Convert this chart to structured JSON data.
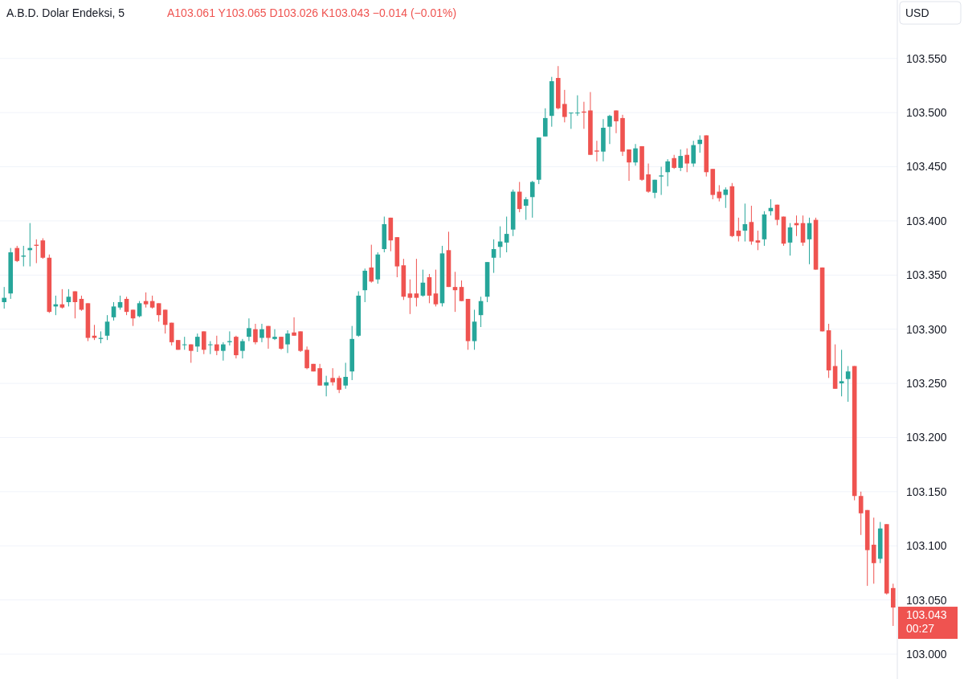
{
  "chart_data": {
    "type": "candlestick",
    "title": "A.B.D. Dolar Endeksi, 5",
    "subtitle": "A103.061 Y103.065 D103.026 K103.043 −0.014 (−0.01%)",
    "ylabel": "USD",
    "categories": [
      null,
      null,
      null,
      null,
      null,
      null,
      null,
      null,
      null,
      null,
      null,
      null,
      null,
      null,
      null,
      null,
      null,
      null,
      null,
      null,
      null,
      null,
      null,
      null,
      null,
      null,
      null,
      null,
      null,
      null,
      null,
      null,
      null,
      null,
      null,
      null,
      null,
      null,
      null,
      null,
      null,
      null,
      null,
      null,
      null,
      null,
      null,
      null,
      null,
      null,
      null,
      null,
      null,
      null,
      null,
      null,
      null,
      null,
      null,
      null,
      null,
      null,
      null,
      null,
      null,
      null,
      null,
      null,
      null,
      null,
      null,
      null,
      null,
      null,
      null,
      null,
      null,
      null,
      null,
      null,
      null,
      null,
      null,
      null,
      null,
      null,
      null,
      null,
      null,
      null,
      null,
      null,
      null,
      null,
      null,
      null,
      null,
      null,
      null,
      null,
      null,
      null,
      null,
      null,
      null,
      null,
      null,
      null,
      null,
      null,
      null,
      null,
      null,
      null,
      null,
      null,
      null,
      null,
      null,
      null,
      null,
      null,
      null,
      null,
      null,
      null,
      null,
      null,
      null,
      null,
      null,
      null,
      null,
      null,
      null,
      null,
      null,
      null,
      null
    ],
    "ohlc": [
      [
        103.325,
        103.339,
        103.319,
        103.329
      ],
      [
        103.333,
        103.375,
        103.328,
        103.371
      ],
      [
        103.375,
        103.377,
        103.362,
        103.363
      ],
      [
        103.367,
        103.377,
        103.358,
        103.368
      ],
      [
        103.373,
        103.398,
        103.358,
        103.375
      ],
      [
        103.378,
        103.383,
        103.361,
        103.377
      ],
      [
        103.382,
        103.384,
        103.365,
        103.366
      ],
      [
        103.366,
        103.369,
        103.315,
        103.316
      ],
      [
        103.321,
        103.331,
        103.313,
        103.323
      ],
      [
        103.323,
        103.337,
        103.319,
        103.32
      ],
      [
        103.325,
        103.337,
        103.321,
        103.33
      ],
      [
        103.335,
        103.335,
        103.31,
        103.325
      ],
      [
        103.328,
        103.331,
        103.317,
        103.318
      ],
      [
        103.324,
        103.324,
        103.289,
        103.292
      ],
      [
        103.294,
        103.304,
        103.29,
        103.292
      ],
      [
        103.291,
        103.298,
        103.287,
        103.292
      ],
      [
        103.294,
        103.313,
        103.29,
        103.307
      ],
      [
        103.311,
        103.325,
        103.308,
        103.321
      ],
      [
        103.32,
        103.331,
        103.318,
        103.325
      ],
      [
        103.328,
        103.33,
        103.313,
        103.316
      ],
      [
        103.318,
        103.318,
        103.303,
        103.31
      ],
      [
        103.312,
        103.326,
        103.311,
        103.324
      ],
      [
        103.326,
        103.334,
        103.32,
        103.323
      ],
      [
        103.326,
        103.331,
        103.319,
        103.32
      ],
      [
        103.324,
        103.324,
        103.307,
        103.313
      ],
      [
        103.318,
        103.318,
        103.296,
        103.304
      ],
      [
        103.306,
        103.306,
        103.285,
        103.288
      ],
      [
        103.29,
        103.29,
        103.281,
        103.281
      ],
      [
        103.286,
        103.293,
        103.281,
        103.286
      ],
      [
        103.286,
        103.286,
        103.269,
        103.28
      ],
      [
        103.284,
        103.296,
        103.279,
        103.293
      ],
      [
        103.298,
        103.298,
        103.277,
        103.281
      ],
      [
        103.286,
        103.289,
        103.277,
        103.286
      ],
      [
        103.286,
        103.294,
        103.276,
        103.28
      ],
      [
        103.28,
        103.288,
        103.271,
        103.286
      ],
      [
        103.288,
        103.298,
        103.285,
        103.289
      ],
      [
        103.293,
        103.294,
        103.273,
        103.276
      ],
      [
        103.28,
        103.291,
        103.273,
        103.289
      ],
      [
        103.293,
        103.31,
        103.289,
        103.301
      ],
      [
        103.3,
        103.305,
        103.286,
        103.288
      ],
      [
        103.292,
        103.305,
        103.288,
        103.3
      ],
      [
        103.303,
        103.303,
        103.282,
        103.292
      ],
      [
        103.291,
        103.3,
        103.29,
        103.293
      ],
      [
        103.293,
        103.293,
        103.281,
        103.282
      ],
      [
        103.286,
        103.299,
        103.278,
        103.296
      ],
      [
        103.297,
        103.311,
        103.294,
        103.294
      ],
      [
        103.298,
        103.298,
        103.279,
        103.28
      ],
      [
        103.281,
        103.284,
        103.263,
        103.264
      ],
      [
        103.268,
        103.268,
        103.261,
        103.261
      ],
      [
        103.264,
        103.268,
        103.248,
        103.248
      ],
      [
        103.248,
        103.257,
        103.238,
        103.251
      ],
      [
        103.255,
        103.264,
        103.248,
        103.251
      ],
      [
        103.255,
        103.257,
        103.241,
        103.244
      ],
      [
        103.248,
        103.269,
        103.245,
        103.256
      ],
      [
        103.261,
        103.303,
        103.253,
        103.291
      ],
      [
        103.294,
        103.335,
        103.293,
        103.331
      ],
      [
        103.336,
        103.356,
        103.325,
        103.354
      ],
      [
        103.357,
        103.378,
        103.343,
        103.344
      ],
      [
        103.346,
        103.371,
        103.342,
        103.369
      ],
      [
        103.374,
        103.404,
        103.371,
        103.397
      ],
      [
        103.403,
        103.403,
        103.372,
        103.382
      ],
      [
        103.385,
        103.385,
        103.348,
        103.358
      ],
      [
        103.359,
        103.365,
        103.327,
        103.33
      ],
      [
        103.333,
        103.346,
        103.314,
        103.329
      ],
      [
        103.333,
        103.365,
        103.321,
        103.329
      ],
      [
        103.331,
        103.355,
        103.33,
        103.343
      ],
      [
        103.348,
        103.351,
        103.324,
        103.331
      ],
      [
        103.333,
        103.355,
        103.321,
        103.323
      ],
      [
        103.324,
        103.377,
        103.321,
        103.37
      ],
      [
        103.373,
        103.39,
        103.339,
        103.339
      ],
      [
        103.339,
        103.353,
        103.316,
        103.336
      ],
      [
        103.339,
        103.345,
        103.326,
        103.326
      ],
      [
        103.328,
        103.328,
        103.281,
        103.289
      ],
      [
        103.289,
        103.318,
        103.281,
        103.307
      ],
      [
        103.313,
        103.33,
        103.302,
        103.326
      ],
      [
        103.33,
        103.362,
        103.325,
        103.362
      ],
      [
        103.366,
        103.383,
        103.352,
        103.374
      ],
      [
        103.376,
        103.395,
        103.366,
        103.381
      ],
      [
        103.38,
        103.404,
        103.371,
        103.388
      ],
      [
        103.392,
        103.429,
        103.386,
        103.427
      ],
      [
        103.427,
        103.436,
        103.408,
        103.411
      ],
      [
        103.414,
        103.422,
        103.401,
        103.42
      ],
      [
        103.422,
        103.437,
        103.403,
        103.436
      ],
      [
        103.438,
        103.477,
        103.434,
        103.477
      ],
      [
        103.478,
        103.504,
        103.478,
        103.495
      ],
      [
        103.497,
        103.533,
        103.487,
        103.529
      ],
      [
        103.532,
        103.543,
        103.503,
        103.504
      ],
      [
        103.508,
        103.521,
        103.491,
        103.496
      ],
      [
        103.5,
        103.5,
        103.485,
        103.5
      ],
      [
        103.5,
        103.516,
        103.497,
        103.5
      ],
      [
        103.501,
        103.51,
        103.485,
        103.5
      ],
      [
        103.502,
        103.519,
        103.461,
        103.461
      ],
      [
        103.465,
        103.474,
        103.455,
        103.464
      ],
      [
        103.464,
        103.494,
        103.455,
        103.486
      ],
      [
        103.487,
        103.498,
        103.471,
        103.497
      ],
      [
        103.502,
        103.502,
        103.481,
        103.492
      ],
      [
        103.495,
        103.498,
        103.46,
        103.464
      ],
      [
        103.466,
        103.466,
        103.437,
        103.454
      ],
      [
        103.454,
        103.471,
        103.451,
        103.467
      ],
      [
        103.469,
        103.469,
        103.437,
        103.438
      ],
      [
        103.443,
        103.453,
        103.426,
        103.427
      ],
      [
        103.426,
        103.438,
        103.421,
        103.438
      ],
      [
        103.441,
        103.45,
        103.424,
        103.442
      ],
      [
        103.445,
        103.457,
        103.432,
        103.455
      ],
      [
        103.458,
        103.461,
        103.448,
        103.449
      ],
      [
        103.449,
        103.466,
        103.446,
        103.46
      ],
      [
        103.461,
        103.467,
        103.445,
        103.453
      ],
      [
        103.453,
        103.474,
        103.45,
        103.47
      ],
      [
        103.471,
        103.479,
        103.463,
        103.475
      ],
      [
        103.479,
        103.479,
        103.441,
        103.445
      ],
      [
        103.448,
        103.448,
        103.42,
        103.424
      ],
      [
        103.427,
        103.433,
        103.418,
        103.421
      ],
      [
        103.424,
        103.431,
        103.412,
        103.429
      ],
      [
        103.432,
        103.435,
        103.385,
        103.386
      ],
      [
        103.391,
        103.403,
        103.381,
        103.386
      ],
      [
        103.391,
        103.416,
        103.381,
        103.397
      ],
      [
        103.399,
        103.414,
        103.378,
        103.381
      ],
      [
        103.382,
        103.391,
        103.373,
        103.38
      ],
      [
        103.383,
        103.409,
        103.377,
        103.406
      ],
      [
        103.409,
        103.42,
        103.405,
        103.412
      ],
      [
        103.415,
        103.415,
        103.396,
        103.401
      ],
      [
        103.404,
        103.404,
        103.377,
        103.379
      ],
      [
        103.38,
        103.398,
        103.368,
        103.394
      ],
      [
        103.398,
        103.405,
        103.386,
        103.396
      ],
      [
        103.398,
        103.405,
        103.377,
        103.38
      ],
      [
        103.383,
        103.403,
        103.36,
        103.398
      ],
      [
        103.401,
        103.403,
        103.355,
        103.355
      ],
      [
        103.357,
        103.357,
        103.298,
        103.298
      ],
      [
        103.299,
        103.305,
        103.255,
        103.262
      ],
      [
        103.266,
        103.286,
        103.245,
        103.245
      ],
      [
        103.25,
        103.281,
        103.238,
        103.252
      ],
      [
        103.254,
        103.266,
        103.233,
        103.261
      ],
      [
        103.266,
        103.266,
        103.142,
        103.146
      ],
      [
        103.146,
        103.15,
        103.11,
        103.13
      ],
      [
        103.133,
        103.133,
        103.063,
        103.096
      ],
      [
        103.101,
        103.126,
        103.065,
        103.084
      ],
      [
        103.088,
        103.122,
        103.084,
        103.116
      ],
      [
        103.12,
        103.12,
        103.055,
        103.056
      ],
      [
        103.061,
        103.065,
        103.026,
        103.043
      ]
    ],
    "ylim": [
      102.977,
      103.604
    ],
    "yticks": [
      {
        "value": 103.0,
        "label": "103.000"
      },
      {
        "value": 103.05,
        "label": "103.050"
      },
      {
        "value": 103.1,
        "label": "103.100"
      },
      {
        "value": 103.15,
        "label": "103.150"
      },
      {
        "value": 103.2,
        "label": "103.200"
      },
      {
        "value": 103.25,
        "label": "103.250"
      },
      {
        "value": 103.3,
        "label": "103.300"
      },
      {
        "value": 103.35,
        "label": "103.350"
      },
      {
        "value": 103.4,
        "label": "103.400"
      },
      {
        "value": 103.45,
        "label": "103.450"
      },
      {
        "value": 103.5,
        "label": "103.500"
      },
      {
        "value": 103.55,
        "label": "103.550"
      }
    ],
    "tick_labels": "y",
    "grid": "y",
    "annotations": [
      "103.043",
      "00:27"
    ]
  }
}
